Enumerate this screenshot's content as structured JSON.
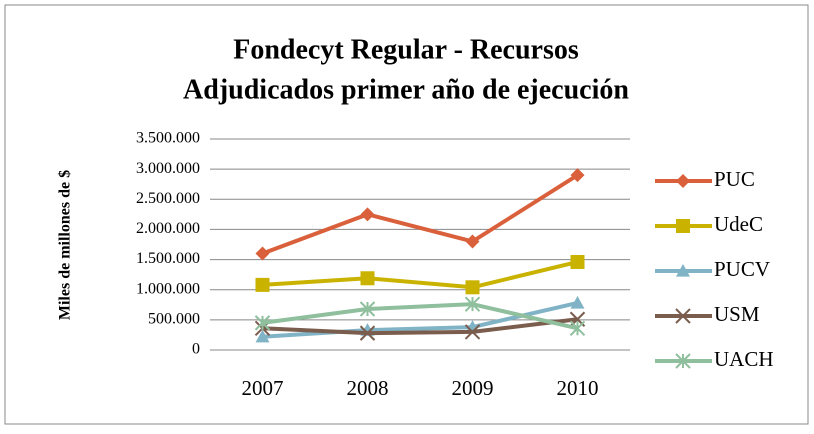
{
  "chart_data": {
    "type": "line",
    "title": [
      "Fondecyt Regular - Recursos",
      "Adjudicados primer año de ejecución"
    ],
    "ylabel": "Miles de millones de $",
    "categories": [
      "2007",
      "2008",
      "2009",
      "2010"
    ],
    "series": [
      {
        "name": "PUC",
        "color": "#d9603b",
        "marker": "diamond",
        "values": [
          1600000,
          2250000,
          1800000,
          2900000
        ]
      },
      {
        "name": "UdeC",
        "color": "#c9b300",
        "marker": "square",
        "values": [
          1080000,
          1190000,
          1040000,
          1460000
        ]
      },
      {
        "name": "PUCV",
        "color": "#80b3c5",
        "marker": "triangle",
        "values": [
          220000,
          330000,
          380000,
          780000
        ]
      },
      {
        "name": "USM",
        "color": "#7b5d4e",
        "marker": "x",
        "values": [
          360000,
          280000,
          300000,
          510000
        ]
      },
      {
        "name": "UACH",
        "color": "#8fbf9d",
        "marker": "star",
        "values": [
          450000,
          680000,
          760000,
          360000
        ]
      }
    ],
    "ylim": [
      0,
      3500000
    ],
    "yticks": [
      0,
      {
        "value": 500000,
        "label": "500.000"
      },
      {
        "value": 1000000,
        "label": "1.000.000"
      },
      {
        "value": 1500000,
        "label": "1.500.000"
      },
      {
        "value": 2000000,
        "label": "2.000.000"
      },
      {
        "value": 2500000,
        "label": "2.500.000"
      },
      {
        "value": 3000000,
        "label": "3.000.000"
      },
      {
        "value": 3500000,
        "label": "3.500.000"
      }
    ],
    "grid": true,
    "legend": "right"
  }
}
